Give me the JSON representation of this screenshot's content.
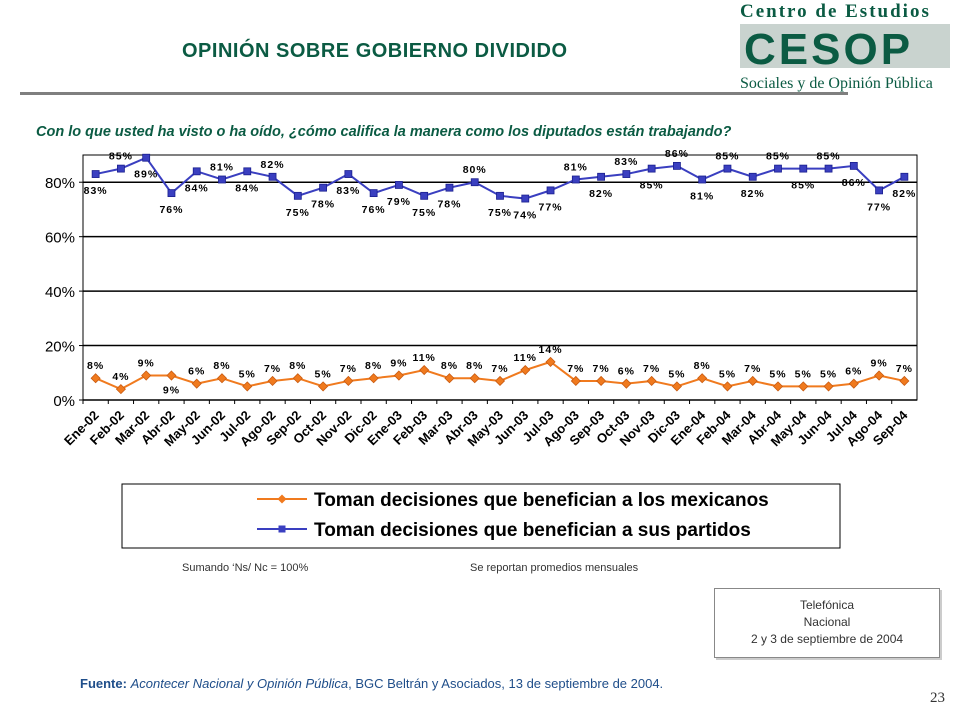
{
  "title": "OPINIÓN SOBRE GOBIERNO DIVIDIDO",
  "logo": {
    "top_text": "Centro de Estudios",
    "mark": "CESOP",
    "bottom_text": "Sociales y de Opinión Pública",
    "colors": {
      "green": "#0b5b43",
      "gray": "#9aa5a0",
      "light": "#c9d3cf"
    }
  },
  "question": "Con lo que usted ha visto o ha oído, ¿cómo califica la manera como los diputados están trabajando?",
  "notes": {
    "left": "Sumando ‘Ns/ Nc = 100%",
    "right": "Se reportan promedios mensuales"
  },
  "source_box": {
    "line1": "Telefónica",
    "line2": "Nacional",
    "line3": "2 y 3 de septiembre de 2004"
  },
  "fuente": {
    "label": "Fuente:",
    "italic": "Acontecer Nacional y Opinión Pública",
    "rest": ", BGC Beltrán y Asociados, 13 de septiembre de 2004."
  },
  "page_number": "23",
  "chart_data": {
    "type": "line",
    "x": [
      "Ene-02",
      "Feb-02",
      "Mar-02",
      "Abr-02",
      "May-02",
      "Jun-02",
      "Jul-02",
      "Ago-02",
      "Sep-02",
      "Oct-02",
      "Nov-02",
      "Dic-02",
      "Ene-03",
      "Feb-03",
      "Mar-03",
      "Abr-03",
      "May-03",
      "Jun-03",
      "Jul-03",
      "Ago-03",
      "Sep-03",
      "Oct-03",
      "Nov-03",
      "Dic-03",
      "Ene-04",
      "Feb-04",
      "Mar-04",
      "Abr-04",
      "May-04",
      "Jun-04",
      "Jul-04",
      "Ago-04",
      "Sep-04"
    ],
    "series": [
      {
        "name": "Toman decisiones que benefician a los mexicanos",
        "color": "#f07a1e",
        "marker": "diamond",
        "values": [
          8,
          4,
          9,
          9,
          6,
          8,
          5,
          7,
          8,
          5,
          7,
          8,
          9,
          11,
          8,
          8,
          7,
          11,
          14,
          7,
          7,
          6,
          7,
          5,
          8,
          5,
          7,
          5,
          5,
          5,
          6,
          9,
          7
        ],
        "labels": [
          "8%",
          "4%",
          "9%",
          "9%",
          "6%",
          "8%",
          "5%",
          "7%",
          "8%",
          "5%",
          "7%",
          "8%",
          "9%",
          "11%",
          "8%",
          "8%",
          "7%",
          "11%",
          "14%",
          "7%",
          "7%",
          "6%",
          "7%",
          "5%",
          "8%",
          "5%",
          "7%",
          "5%",
          "5%",
          "5%",
          "6%",
          "9%",
          "7%"
        ]
      },
      {
        "name": "Toman decisiones que benefician a sus partidos",
        "color": "#3a3fc0",
        "marker": "square",
        "values": [
          83,
          85,
          89,
          76,
          84,
          81,
          84,
          82,
          75,
          78,
          83,
          76,
          79,
          75,
          78,
          80,
          75,
          74,
          77,
          81,
          82,
          83,
          85,
          86,
          81,
          85,
          82,
          85,
          85,
          85,
          86,
          77,
          82
        ],
        "labels": [
          "83%",
          "85%",
          "89%",
          "76%",
          "84%",
          "81%",
          "84%",
          "82%",
          "75%",
          "78%",
          "83%",
          "76%",
          "79%",
          "75%",
          "78%",
          "80%",
          "75%",
          "74%",
          "77%",
          "81%",
          "82%",
          "83%",
          "85%",
          "86%",
          "81%",
          "85%",
          "82%",
          "85%",
          "85%",
          "85%",
          "86%",
          "77%",
          "82%"
        ]
      }
    ],
    "y_ticks": [
      "0%",
      "20%",
      "40%",
      "60%",
      "80%"
    ],
    "y_tick_values": [
      0,
      20,
      40,
      60,
      80
    ],
    "ylim": [
      0,
      90
    ],
    "grid": true,
    "legend_position": "bottom"
  }
}
